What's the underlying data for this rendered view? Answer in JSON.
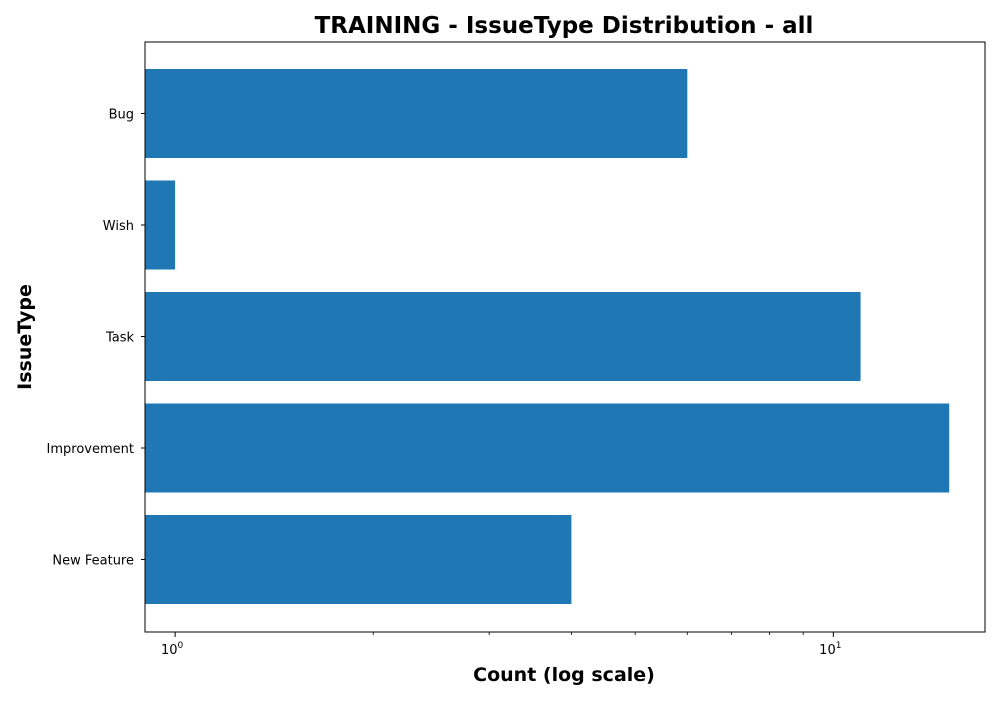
{
  "chart_data": {
    "type": "bar",
    "orientation": "horizontal",
    "title": "TRAINING - IssueType Distribution - all",
    "xlabel": "Count (log scale)",
    "ylabel": "IssueType",
    "x_scale": "log",
    "xlim": [
      0.9,
      17
    ],
    "x_ticks": [
      {
        "value": 1,
        "base": "10",
        "exponent": "0"
      },
      {
        "value": 10,
        "base": "10",
        "exponent": "1"
      }
    ],
    "categories": [
      "Bug",
      "Wish",
      "Task",
      "Improvement",
      "New Feature"
    ],
    "values": [
      6,
      1,
      11,
      15,
      4
    ],
    "bar_color": "#1f77b4",
    "grid": false
  }
}
